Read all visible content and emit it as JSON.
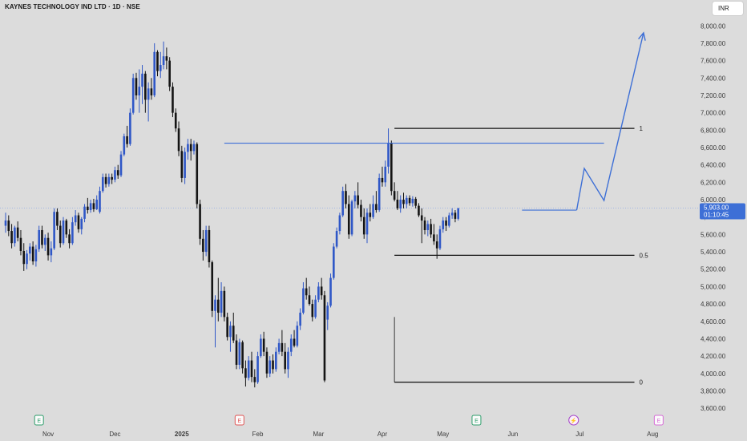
{
  "header": {
    "title": "KAYNES TECHNOLOGY IND LTD · 1D · NSE",
    "currency": "INR"
  },
  "colors": {
    "background": "#dcdcdc",
    "bull": "#2f57c7",
    "bear": "#141414",
    "drawing": "#3d6fd6",
    "fib": "#111111",
    "price_badge": "#3d6fd6",
    "event_green": "#2e9e6b",
    "event_red": "#e05555",
    "event_purple": "#a23fc7",
    "event_pink": "#d66bd6"
  },
  "chart_data": {
    "type": "candlestick",
    "ylim": [
      3500,
      8150
    ],
    "y_ticks": [
      3600,
      3800,
      4000,
      4200,
      4400,
      4600,
      4800,
      5000,
      5200,
      5400,
      5600,
      5800,
      6000,
      6200,
      6400,
      6600,
      6800,
      7000,
      7200,
      7400,
      7600,
      7800,
      8000
    ],
    "y_tick_labels": [
      "3,600.00",
      "3,800.00",
      "4,000.00",
      "4,200.00",
      "4,400.00",
      "4,600.00",
      "4,800.00",
      "5,000.00",
      "5,200.00",
      "5,400.00",
      "5,600.00",
      "5,800.00",
      "6,000.00",
      "6,200.00",
      "6,400.00",
      "6,600.00",
      "6,800.00",
      "7,000.00",
      "7,200.00",
      "7,400.00",
      "7,600.00",
      "7,800.00",
      "8,000.00"
    ],
    "x_tick_labels": [
      {
        "label": "Nov",
        "bar": 14,
        "bold": false
      },
      {
        "label": "Dec",
        "bar": 36,
        "bold": false
      },
      {
        "label": "2025",
        "bar": 58,
        "bold": true
      },
      {
        "label": "Feb",
        "bar": 83,
        "bold": false
      },
      {
        "label": "Mar",
        "bar": 103,
        "bold": false
      },
      {
        "label": "Apr",
        "bar": 124,
        "bold": false
      },
      {
        "label": "May",
        "bar": 144,
        "bold": false
      },
      {
        "label": "Jun",
        "bar": 167,
        "bold": false
      },
      {
        "label": "Jul",
        "bar": 189,
        "bold": false
      },
      {
        "label": "Aug",
        "bar": 213,
        "bold": false
      }
    ],
    "last_price": {
      "value": 5903,
      "label": "5,903.00",
      "countdown": "01:10:45"
    },
    "fib_levels": [
      {
        "label": "1",
        "value": 6820
      },
      {
        "label": "0.5",
        "value": 5360
      },
      {
        "label": "0",
        "value": 3900
      }
    ],
    "fib_range": {
      "bar_start": 128,
      "bar_end": 207
    },
    "resistance_line": {
      "bar_start": 72,
      "bar_end": 197,
      "value": 6650
    },
    "short_resistance": {
      "bar_start": 170,
      "bar_end": 188,
      "value": 5880
    },
    "projection": [
      {
        "bar": 188,
        "value": 5880
      },
      {
        "bar": 190.5,
        "value": 6360
      },
      {
        "bar": 197,
        "value": 5990
      },
      {
        "bar": 210,
        "value": 7920
      }
    ],
    "events": [
      {
        "label": "E",
        "bar": 11,
        "kind": "earnings-green"
      },
      {
        "label": "E",
        "bar": 77,
        "kind": "earnings-red"
      },
      {
        "label": "E",
        "bar": 155,
        "kind": "earnings-green"
      },
      {
        "label": "⚡",
        "bar": 187,
        "kind": "dividend"
      },
      {
        "label": "E",
        "bar": 215,
        "kind": "earnings-pink"
      }
    ],
    "candles": [
      [
        5700,
        5850,
        5620,
        5760
      ],
      [
        5760,
        5820,
        5580,
        5640
      ],
      [
        5640,
        5720,
        5440,
        5500
      ],
      [
        5500,
        5700,
        5460,
        5680
      ],
      [
        5680,
        5750,
        5520,
        5560
      ],
      [
        5560,
        5650,
        5360,
        5410
      ],
      [
        5410,
        5500,
        5180,
        5260
      ],
      [
        5260,
        5420,
        5200,
        5380
      ],
      [
        5380,
        5500,
        5300,
        5460
      ],
      [
        5460,
        5520,
        5250,
        5290
      ],
      [
        5290,
        5480,
        5230,
        5430
      ],
      [
        5430,
        5700,
        5400,
        5650
      ],
      [
        5650,
        5700,
        5440,
        5480
      ],
      [
        5480,
        5600,
        5410,
        5560
      ],
      [
        5560,
        5620,
        5300,
        5360
      ],
      [
        5360,
        5520,
        5280,
        5440
      ],
      [
        5440,
        5900,
        5420,
        5860
      ],
      [
        5860,
        5900,
        5650,
        5700
      ],
      [
        5700,
        5760,
        5450,
        5500
      ],
      [
        5500,
        5800,
        5480,
        5760
      ],
      [
        5760,
        5780,
        5560,
        5600
      ],
      [
        5600,
        5660,
        5440,
        5500
      ],
      [
        5500,
        5800,
        5480,
        5740
      ],
      [
        5740,
        5880,
        5700,
        5820
      ],
      [
        5820,
        5850,
        5620,
        5660
      ],
      [
        5660,
        5800,
        5600,
        5780
      ],
      [
        5780,
        5950,
        5740,
        5920
      ],
      [
        5920,
        6020,
        5840,
        5880
      ],
      [
        5880,
        6000,
        5850,
        5960
      ],
      [
        5960,
        6010,
        5860,
        5890
      ],
      [
        5890,
        6050,
        5880,
        6000
      ],
      [
        5860,
        6150,
        5840,
        6100
      ],
      [
        6100,
        6300,
        6080,
        6260
      ],
      [
        6260,
        6300,
        6140,
        6180
      ],
      [
        6180,
        6300,
        6150,
        6260
      ],
      [
        6260,
        6300,
        6180,
        6230
      ],
      [
        6230,
        6380,
        6200,
        6340
      ],
      [
        6340,
        6400,
        6240,
        6280
      ],
      [
        6280,
        6560,
        6260,
        6520
      ],
      [
        6520,
        6760,
        6500,
        6730
      ],
      [
        6730,
        6850,
        6600,
        6640
      ],
      [
        6640,
        7050,
        6620,
        7000
      ],
      [
        7000,
        7450,
        6980,
        7400
      ],
      [
        7400,
        7460,
        7150,
        7200
      ],
      [
        7200,
        7500,
        7000,
        7300
      ],
      [
        7300,
        7550,
        7100,
        7450
      ],
      [
        7450,
        7480,
        7000,
        7150
      ],
      [
        7150,
        7350,
        6900,
        7280
      ],
      [
        7280,
        7400,
        7150,
        7200
      ],
      [
        7200,
        7800,
        7180,
        7700
      ],
      [
        7700,
        7720,
        7420,
        7480
      ],
      [
        7480,
        7700,
        7400,
        7550
      ],
      [
        7550,
        7820,
        7500,
        7650
      ],
      [
        7650,
        7750,
        7500,
        7600
      ],
      [
        7600,
        7640,
        7250,
        7300
      ],
      [
        7300,
        7350,
        6950,
        7000
      ],
      [
        7000,
        7050,
        6780,
        6820
      ],
      [
        6820,
        6900,
        6500,
        6560
      ],
      [
        6560,
        6620,
        6200,
        6250
      ],
      [
        6250,
        6600,
        6180,
        6550
      ],
      [
        6550,
        6700,
        6460,
        6640
      ],
      [
        6640,
        6700,
        6450,
        6560
      ],
      [
        6560,
        6680,
        6520,
        6640
      ],
      [
        6640,
        6660,
        5900,
        5950
      ],
      [
        5950,
        6000,
        5480,
        5550
      ],
      [
        5550,
        5650,
        5300,
        5400
      ],
      [
        5400,
        5700,
        5350,
        5650
      ],
      [
        5650,
        5700,
        5220,
        5280
      ],
      [
        5280,
        5300,
        4650,
        4720
      ],
      [
        4720,
        4900,
        4300,
        4850
      ],
      [
        4850,
        5100,
        4600,
        4700
      ],
      [
        4700,
        5050,
        4650,
        4950
      ],
      [
        4950,
        5000,
        4600,
        4650
      ],
      [
        4650,
        4700,
        4380,
        4420
      ],
      [
        4420,
        4600,
        4250,
        4550
      ],
      [
        4550,
        4700,
        4350,
        4380
      ],
      [
        4380,
        4450,
        4050,
        4100
      ],
      [
        4100,
        4400,
        4050,
        4360
      ],
      [
        4360,
        4380,
        4000,
        4060
      ],
      [
        4060,
        4150,
        3850,
        3950
      ],
      [
        3950,
        4200,
        3920,
        4150
      ],
      [
        4150,
        4250,
        3900,
        3960
      ],
      [
        3960,
        4050,
        3840,
        3900
      ],
      [
        3900,
        4250,
        3880,
        4200
      ],
      [
        4200,
        4450,
        4180,
        4400
      ],
      [
        4400,
        4480,
        4200,
        4250
      ],
      [
        4250,
        4300,
        3950,
        4000
      ],
      [
        4000,
        4200,
        3960,
        4150
      ],
      [
        4150,
        4220,
        4000,
        4050
      ],
      [
        4050,
        4300,
        4020,
        4250
      ],
      [
        4250,
        4400,
        4220,
        4350
      ],
      [
        4350,
        4500,
        4200,
        4250
      ],
      [
        4250,
        4350,
        4000,
        4050
      ],
      [
        4050,
        4300,
        3950,
        4250
      ],
      [
        4250,
        4450,
        4200,
        4400
      ],
      [
        4400,
        4500,
        4300,
        4320
      ],
      [
        4320,
        4600,
        4300,
        4550
      ],
      [
        4550,
        4750,
        4500,
        4700
      ],
      [
        4700,
        5050,
        4680,
        4980
      ],
      [
        4980,
        5100,
        4850,
        4900
      ],
      [
        4900,
        5000,
        4780,
        4800
      ],
      [
        4800,
        4850,
        4600,
        4650
      ],
      [
        4650,
        4900,
        4630,
        4850
      ],
      [
        4850,
        5050,
        4820,
        5000
      ],
      [
        5000,
        5100,
        4850,
        4900
      ],
      [
        4900,
        4950,
        3900,
        3920
      ],
      [
        4620,
        4820,
        4500,
        4780
      ],
      [
        4780,
        5150,
        4760,
        5100
      ],
      [
        5100,
        5500,
        5080,
        5460
      ],
      [
        5460,
        5680,
        5440,
        5640
      ],
      [
        5640,
        5850,
        5600,
        5820
      ],
      [
        5820,
        6150,
        5800,
        6100
      ],
      [
        6100,
        6180,
        5900,
        5950
      ],
      [
        5950,
        6050,
        5550,
        5600
      ],
      [
        5600,
        6000,
        5580,
        5980
      ],
      [
        5980,
        6100,
        5900,
        6050
      ],
      [
        6050,
        6200,
        5900,
        5940
      ],
      [
        5940,
        6000,
        5750,
        5800
      ],
      [
        5800,
        5900,
        5550,
        5600
      ],
      [
        5600,
        5900,
        5500,
        5850
      ],
      [
        5850,
        5950,
        5750,
        5800
      ],
      [
        5800,
        6050,
        5780,
        5950
      ],
      [
        5950,
        6100,
        5850,
        5880
      ],
      [
        5880,
        6300,
        5860,
        6250
      ],
      [
        6250,
        6380,
        6150,
        6200
      ],
      [
        6200,
        6450,
        6150,
        6380
      ],
      [
        6380,
        6820,
        6300,
        6650
      ],
      [
        6650,
        6680,
        6050,
        6100
      ],
      [
        6100,
        6200,
        5980,
        6000
      ],
      [
        6000,
        6100,
        5880,
        5900
      ],
      [
        5900,
        6050,
        5850,
        6000
      ],
      [
        6000,
        6080,
        5900,
        5950
      ],
      [
        5950,
        6050,
        5900,
        6020
      ],
      [
        6020,
        6050,
        5930,
        5960
      ],
      [
        5960,
        6040,
        5920,
        6010
      ],
      [
        6010,
        6030,
        5900,
        5930
      ],
      [
        5930,
        5960,
        5800,
        5820
      ],
      [
        5820,
        5900,
        5500,
        5760
      ],
      [
        5760,
        5800,
        5600,
        5650
      ],
      [
        5650,
        5760,
        5580,
        5720
      ],
      [
        5720,
        5780,
        5560,
        5600
      ],
      [
        5600,
        5720,
        5480,
        5520
      ],
      [
        5520,
        5600,
        5320,
        5440
      ],
      [
        5440,
        5700,
        5420,
        5660
      ],
      [
        5660,
        5800,
        5620,
        5760
      ],
      [
        5760,
        5800,
        5640,
        5700
      ],
      [
        5700,
        5850,
        5680,
        5820
      ],
      [
        5820,
        5900,
        5780,
        5850
      ],
      [
        5850,
        5880,
        5740,
        5780
      ],
      [
        5780,
        5903,
        5760,
        5903
      ]
    ]
  }
}
